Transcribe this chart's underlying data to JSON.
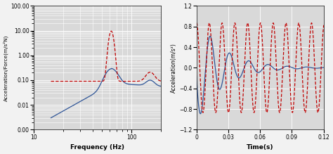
{
  "left_xlabel": "Frequency (Hz)",
  "left_ylabel": "Acceleration/Force(m/s²N)",
  "left_xlim": [
    10,
    200
  ],
  "left_ylim": [
    0.001,
    100
  ],
  "left_xticks": [
    10,
    100
  ],
  "left_yticks": [
    0.001,
    0.01,
    0.1,
    1,
    10,
    100
  ],
  "right_xlabel": "Time(s)",
  "right_ylabel": "Acceleration(m/s²)",
  "right_xlim": [
    0,
    0.12
  ],
  "right_ylim": [
    -1.2,
    1.2
  ],
  "right_xticks": [
    0,
    0.03,
    0.06,
    0.09,
    0.12
  ],
  "right_yticks": [
    -1.2,
    -0.8,
    -0.4,
    0,
    0.4,
    0.8,
    1.2
  ],
  "blue_color": "#2f5597",
  "red_color": "#c00000",
  "bg_color": "#d9d9d9",
  "grid_color": "#ffffff",
  "fig_bg": "#f2f2f2"
}
